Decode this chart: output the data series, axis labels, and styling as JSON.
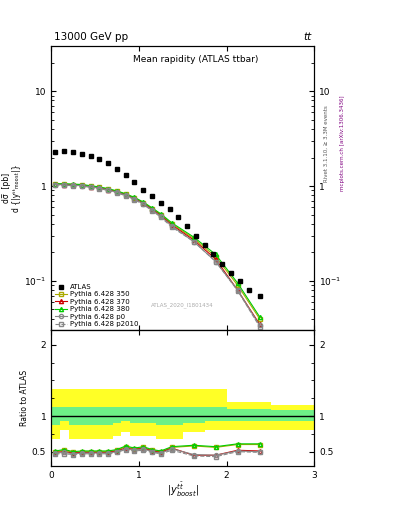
{
  "title_top": "13000 GeV pp",
  "title_top_right": "tt",
  "title_inner": "Mean rapidity (ATLAS ttbar)",
  "watermark": "ATLAS_2020_I1801434",
  "right_label_top": "Rivet 3.1.10, ≥ 3.3M events",
  "right_label_bottom": "mcplots.cern.ch [arXiv:1306.3436]",
  "ylabel_ratio": "Ratio to ATLAS",
  "atlas_x": [
    0.05,
    0.15,
    0.25,
    0.35,
    0.45,
    0.55,
    0.65,
    0.75,
    0.85,
    0.95,
    1.05,
    1.15,
    1.25,
    1.35,
    1.45,
    1.55,
    1.65,
    1.75,
    1.85,
    1.95,
    2.05,
    2.15,
    2.25,
    2.375
  ],
  "atlas_y": [
    2.3,
    2.35,
    2.3,
    2.2,
    2.1,
    1.95,
    1.75,
    1.5,
    1.3,
    1.1,
    0.9,
    0.78,
    0.67,
    0.57,
    0.47,
    0.38,
    0.3,
    0.24,
    0.19,
    0.15,
    0.12,
    0.1,
    0.08,
    0.07
  ],
  "mc_x": [
    0.05,
    0.15,
    0.25,
    0.35,
    0.45,
    0.55,
    0.65,
    0.75,
    0.85,
    0.95,
    1.05,
    1.15,
    1.25,
    1.375,
    1.625,
    1.875,
    2.125,
    2.375
  ],
  "py350_y": [
    1.05,
    1.05,
    1.04,
    1.03,
    1.0,
    0.97,
    0.93,
    0.88,
    0.82,
    0.75,
    0.67,
    0.58,
    0.5,
    0.4,
    0.28,
    0.18,
    0.09,
    0.04
  ],
  "py370_y": [
    1.05,
    1.04,
    1.03,
    1.02,
    0.99,
    0.96,
    0.92,
    0.87,
    0.81,
    0.74,
    0.66,
    0.57,
    0.49,
    0.39,
    0.27,
    0.17,
    0.08,
    0.035
  ],
  "py380_y": [
    1.06,
    1.06,
    1.05,
    1.04,
    1.01,
    0.98,
    0.94,
    0.89,
    0.83,
    0.76,
    0.68,
    0.59,
    0.51,
    0.41,
    0.29,
    0.19,
    0.095,
    0.042
  ],
  "pyp0_y": [
    1.04,
    1.03,
    1.02,
    1.01,
    0.98,
    0.95,
    0.91,
    0.86,
    0.8,
    0.73,
    0.65,
    0.56,
    0.48,
    0.38,
    0.26,
    0.16,
    0.08,
    0.034
  ],
  "pyp2010_y": [
    1.03,
    1.02,
    1.01,
    1.0,
    0.97,
    0.94,
    0.9,
    0.85,
    0.79,
    0.72,
    0.64,
    0.55,
    0.47,
    0.37,
    0.26,
    0.16,
    0.079,
    0.033
  ],
  "ratio_x": [
    0.05,
    0.15,
    0.25,
    0.35,
    0.45,
    0.55,
    0.65,
    0.75,
    0.85,
    0.95,
    1.05,
    1.15,
    1.25,
    1.375,
    1.625,
    1.875,
    2.125,
    2.375
  ],
  "r350_y": [
    0.5,
    0.52,
    0.49,
    0.5,
    0.5,
    0.5,
    0.5,
    0.52,
    0.57,
    0.54,
    0.56,
    0.52,
    0.5,
    0.56,
    0.58,
    0.56,
    0.6,
    0.6
  ],
  "r370_y": [
    0.49,
    0.5,
    0.48,
    0.49,
    0.49,
    0.49,
    0.49,
    0.51,
    0.55,
    0.53,
    0.55,
    0.51,
    0.49,
    0.55,
    0.45,
    0.45,
    0.52,
    0.51
  ],
  "r380_y": [
    0.51,
    0.53,
    0.5,
    0.51,
    0.51,
    0.51,
    0.51,
    0.53,
    0.58,
    0.55,
    0.57,
    0.53,
    0.51,
    0.57,
    0.59,
    0.57,
    0.61,
    0.61
  ],
  "rp0_y": [
    0.48,
    0.49,
    0.47,
    0.48,
    0.48,
    0.48,
    0.48,
    0.5,
    0.54,
    0.52,
    0.54,
    0.5,
    0.48,
    0.54,
    0.46,
    0.45,
    0.51,
    0.5
  ],
  "rp2010_y": [
    0.47,
    0.47,
    0.46,
    0.47,
    0.47,
    0.47,
    0.47,
    0.49,
    0.53,
    0.51,
    0.52,
    0.49,
    0.47,
    0.52,
    0.44,
    0.43,
    0.5,
    0.49
  ],
  "band_edges": [
    0.0,
    0.1,
    0.2,
    0.3,
    0.4,
    0.5,
    0.6,
    0.7,
    0.8,
    0.9,
    1.0,
    1.1,
    1.2,
    1.25,
    1.5,
    1.75,
    2.0,
    2.5,
    3.0
  ],
  "yellow_lo": [
    0.68,
    0.8,
    0.68,
    0.68,
    0.68,
    0.68,
    0.68,
    0.72,
    0.78,
    0.72,
    0.72,
    0.72,
    0.68,
    0.68,
    0.78,
    0.8,
    0.8,
    0.8
  ],
  "yellow_hi": [
    1.38,
    1.38,
    1.38,
    1.38,
    1.38,
    1.38,
    1.38,
    1.38,
    1.38,
    1.38,
    1.38,
    1.38,
    1.38,
    1.38,
    1.38,
    1.38,
    1.2,
    1.15
  ],
  "green_lo": [
    0.87,
    0.93,
    0.87,
    0.87,
    0.87,
    0.87,
    0.87,
    0.9,
    0.93,
    0.9,
    0.9,
    0.9,
    0.87,
    0.87,
    0.9,
    0.93,
    0.93,
    0.93
  ],
  "green_hi": [
    1.13,
    1.13,
    1.13,
    1.13,
    1.13,
    1.13,
    1.13,
    1.13,
    1.13,
    1.13,
    1.13,
    1.13,
    1.13,
    1.13,
    1.13,
    1.13,
    1.1,
    1.08
  ],
  "color_350": "#aaaa00",
  "color_370": "#cc0000",
  "color_380": "#00cc00",
  "color_p0": "#888888",
  "color_p2010": "#888888",
  "color_atlas": "black",
  "xlim": [
    0,
    3
  ],
  "ylim_main": [
    0.03,
    30
  ],
  "ylim_ratio": [
    0.3,
    2.2
  ]
}
